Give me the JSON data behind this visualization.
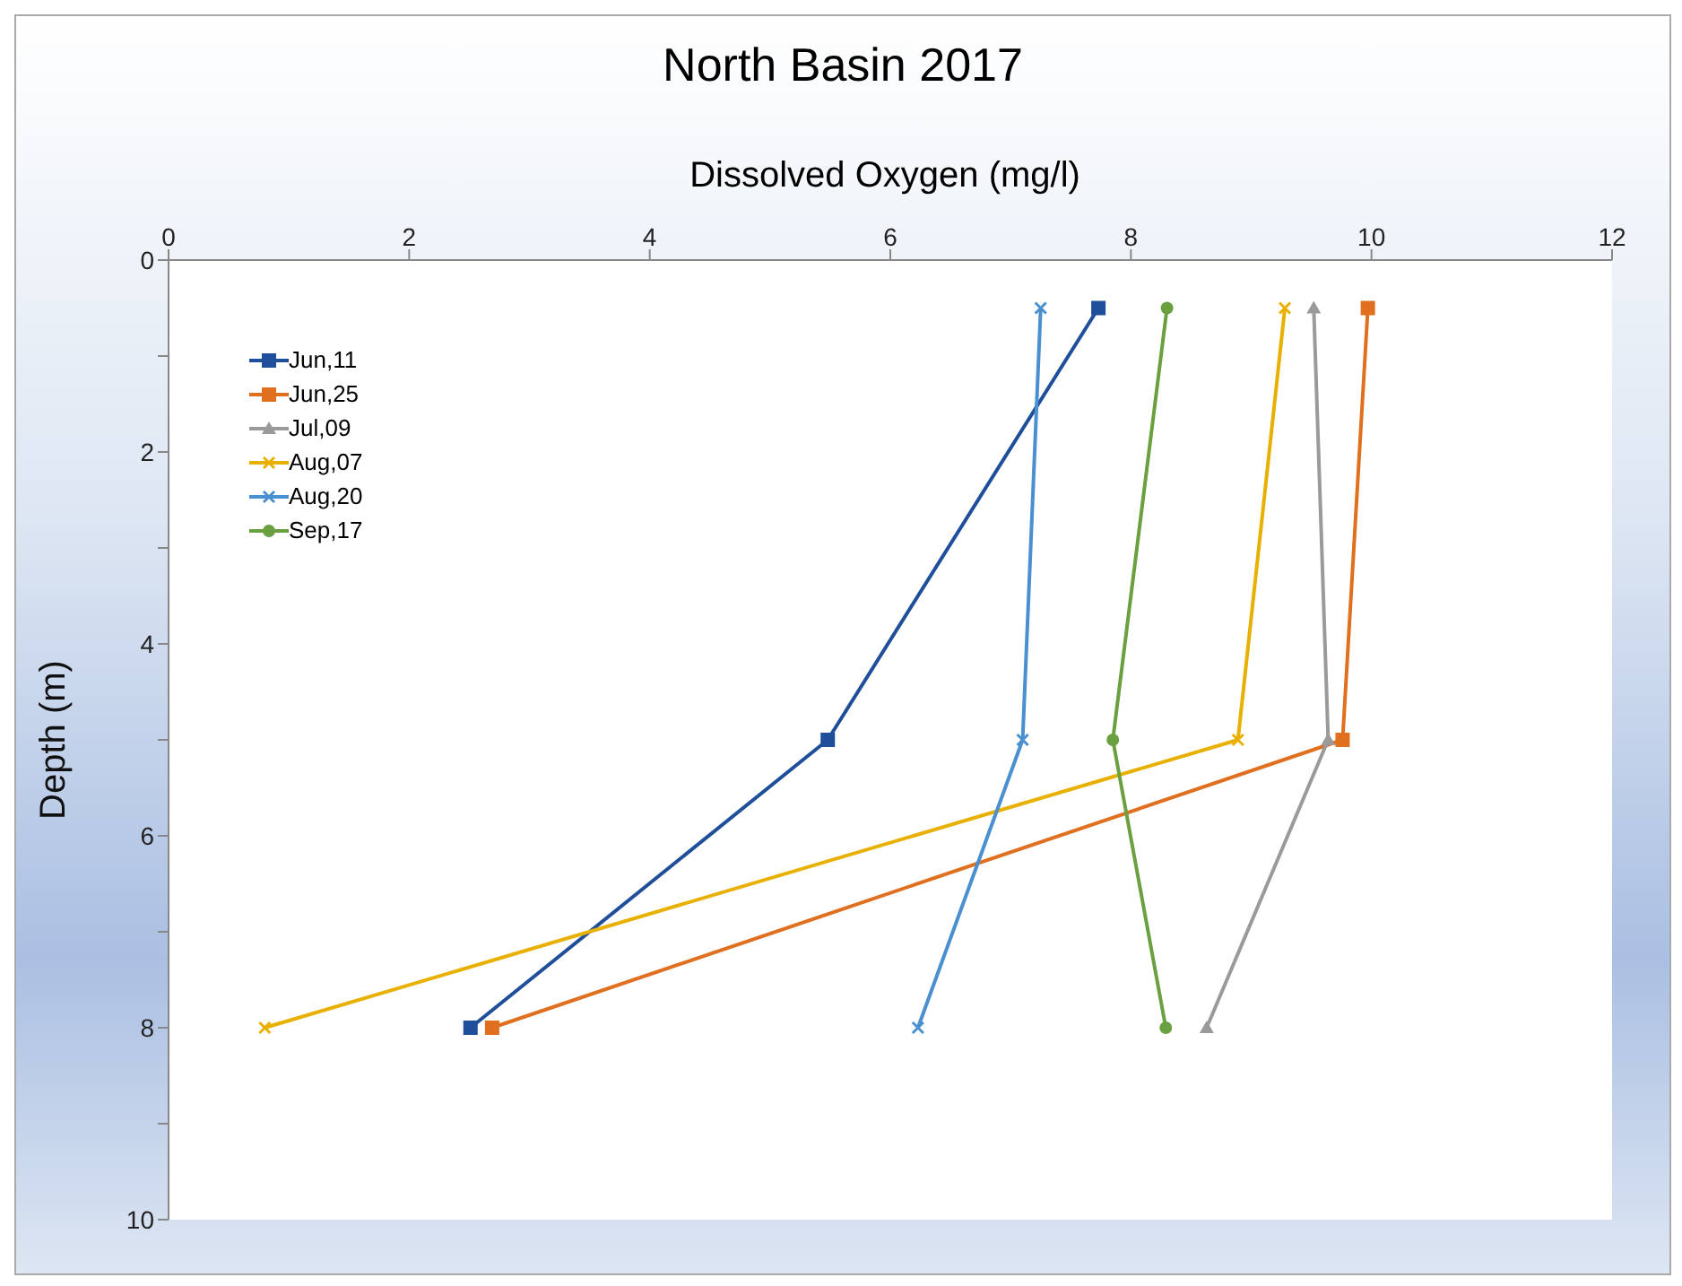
{
  "chart_data": {
    "type": "line",
    "title": "North Basin 2017",
    "xlabel": "Dissolved Oxygen (mg/l)",
    "ylabel": "Depth (m)",
    "xlim": [
      0,
      12
    ],
    "xticks": [
      0,
      2,
      4,
      6,
      8,
      10,
      12
    ],
    "ylim": [
      10,
      0
    ],
    "yticks": [
      0,
      {
        "value": 1,
        "label": null
      },
      2,
      {
        "value": 3,
        "label": null
      },
      4,
      {
        "value": 5,
        "label": null
      },
      6,
      {
        "value": 7,
        "label": null
      },
      8,
      {
        "value": 9,
        "label": null
      },
      10
    ],
    "legend": "top left",
    "series": [
      {
        "name": "Jun,11",
        "color": "#1f4e9a",
        "marker": "square",
        "x": [
          7.73,
          5.48,
          2.51
        ],
        "values": [
          0.5,
          5,
          8
        ]
      },
      {
        "name": "Jun,25",
        "color": "#e07020",
        "marker": "square",
        "x": [
          9.97,
          9.76,
          2.69
        ],
        "values": [
          0.5,
          5,
          8
        ]
      },
      {
        "name": "Jul,09",
        "color": "#9a9a9a",
        "marker": "triangle",
        "x": [
          9.52,
          9.64,
          8.63
        ],
        "values": [
          0.5,
          5,
          8
        ]
      },
      {
        "name": "Aug,07",
        "color": "#e8b000",
        "marker": "cross",
        "x": [
          9.28,
          8.89,
          0.8
        ],
        "values": [
          0.5,
          5,
          8
        ]
      },
      {
        "name": "Aug,20",
        "color": "#4a8fd0",
        "marker": "cross",
        "x": [
          7.25,
          7.1,
          6.23
        ],
        "values": [
          0.5,
          5,
          8
        ]
      },
      {
        "name": "Sep,17",
        "color": "#6aa040",
        "marker": "circle",
        "x": [
          8.3,
          7.85,
          8.29
        ],
        "values": [
          0.5,
          5,
          8
        ]
      }
    ]
  }
}
